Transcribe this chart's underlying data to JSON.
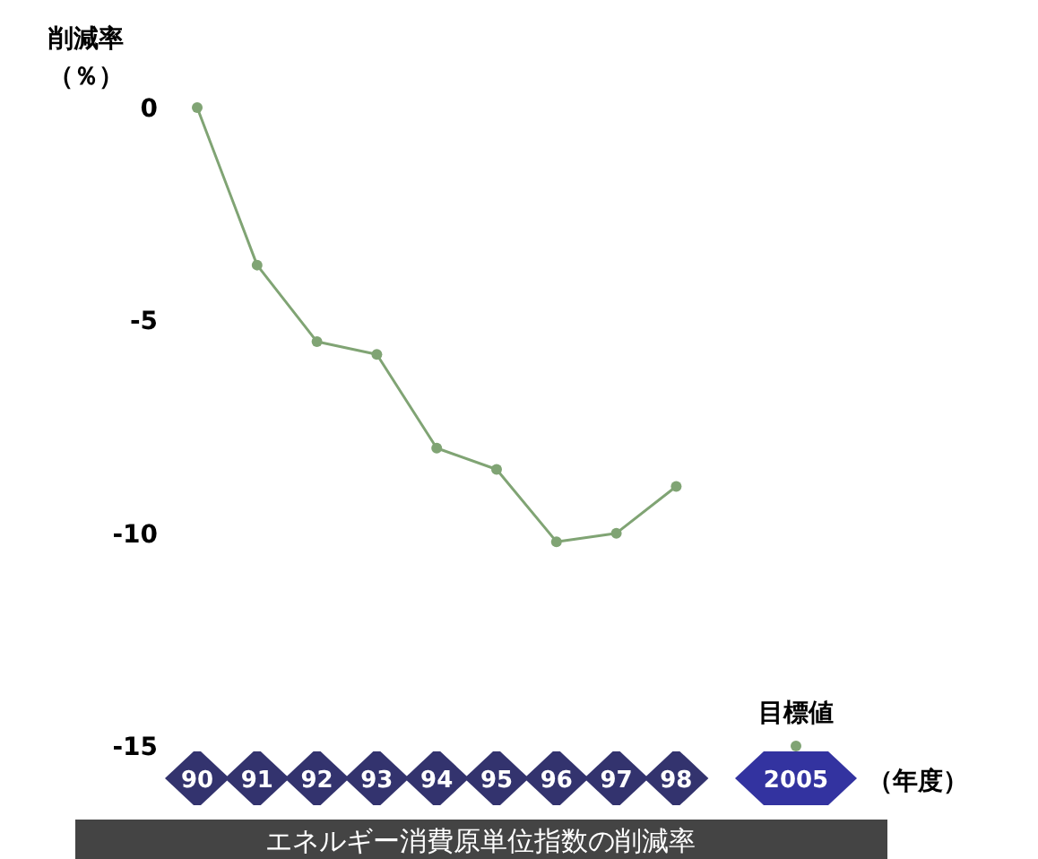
{
  "chart_data": {
    "type": "line",
    "title": "エネルギー消費原単位指数の削減率",
    "ylabel": "削減率（％）",
    "xlabel": "（年度）",
    "categories": [
      "90",
      "91",
      "92",
      "93",
      "94",
      "95",
      "96",
      "97",
      "98",
      null,
      "2005"
    ],
    "series": [
      {
        "color": "#80a474",
        "values": [
          0,
          -3.7,
          -5.5,
          -5.8,
          -8.0,
          -8.5,
          -10.2,
          -10.0,
          -8.9,
          null,
          -15
        ]
      }
    ],
    "ylim": [
      -15,
      0
    ],
    "yticks": [
      0,
      -5,
      -10,
      -15
    ],
    "marker": "circle",
    "line_style": "solid",
    "grid": false,
    "annotations": [
      {
        "text": "目標値",
        "x": "2005",
        "y": -15
      }
    ]
  }
}
